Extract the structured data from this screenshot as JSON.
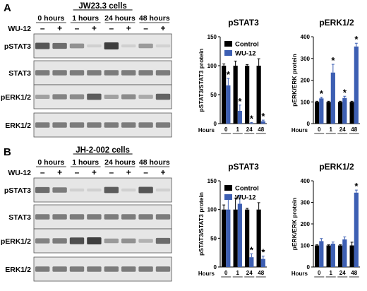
{
  "colors": {
    "control": "#000000",
    "wu12": "#3d5fb3",
    "blot_bg": "#e6e6e6",
    "band": "#3a3a3a",
    "frame": "#555555"
  },
  "panels": [
    {
      "letter": "A",
      "cell_line": "JW23.3 cells",
      "treatment_label": "WU-12",
      "time_headers": [
        "0 hours",
        "1 hours",
        "24 hours",
        "48 hours"
      ],
      "lane_signs": [
        "–",
        "+",
        "–",
        "+",
        "–",
        "+",
        "–",
        "+"
      ],
      "blot_rows": [
        {
          "label": "pSTAT3",
          "intensity": [
            0.85,
            0.7,
            0.45,
            0.05,
            1.0,
            0.05,
            0.4,
            0.03
          ]
        },
        {
          "label": "STAT3",
          "intensity": [
            0.6,
            0.6,
            0.6,
            0.6,
            0.6,
            0.6,
            0.6,
            0.6
          ]
        },
        {
          "label": "pERK1/2",
          "intensity": [
            0.35,
            0.55,
            0.5,
            0.8,
            0.35,
            0.5,
            0.3,
            0.75
          ]
        },
        {
          "label": "ERK1/2",
          "intensity": [
            0.6,
            0.6,
            0.6,
            0.6,
            0.6,
            0.6,
            0.6,
            0.6
          ]
        }
      ]
    },
    {
      "letter": "B",
      "cell_line": "JH-2-002 cells",
      "treatment_label": "WU-12",
      "time_headers": [
        "0 hours",
        "1 hours",
        "24 hours",
        "48 hours"
      ],
      "lane_signs": [
        "–",
        "+",
        "–",
        "+",
        "–",
        "+",
        "–",
        "+"
      ],
      "blot_rows": [
        {
          "label": "pSTAT3",
          "intensity": [
            0.7,
            0.6,
            0.05,
            0.05,
            0.8,
            0.05,
            0.85,
            0.05
          ]
        },
        {
          "label": "STAT3",
          "intensity": [
            0.6,
            0.6,
            0.6,
            0.6,
            0.6,
            0.6,
            0.6,
            0.6
          ]
        },
        {
          "label": "pERK1/2",
          "intensity": [
            0.55,
            0.6,
            0.9,
            1.0,
            0.4,
            0.45,
            0.25,
            0.7
          ]
        },
        {
          "label": "ERK1/2",
          "intensity": [
            0.6,
            0.6,
            0.6,
            0.6,
            0.6,
            0.6,
            0.6,
            0.6
          ]
        }
      ]
    }
  ],
  "chart_data": [
    {
      "panel": "A",
      "type": "bar",
      "title": "pSTAT3",
      "xlabel": "Hours",
      "ylabel": "pSTAT3/STAT3 protein",
      "categories": [
        "0",
        "1",
        "24",
        "48"
      ],
      "ylim": [
        0,
        150
      ],
      "yticks": [
        0,
        50,
        100,
        150
      ],
      "legend": "top-right",
      "series": [
        {
          "name": "Control",
          "values": [
            100,
            100,
            100,
            100
          ],
          "errors": [
            3,
            8,
            2,
            12
          ]
        },
        {
          "name": "WU-12",
          "values": [
            66,
            22,
            1,
            4
          ],
          "errors": [
            12,
            10,
            1,
            2
          ]
        }
      ],
      "significance": [
        false,
        true,
        false,
        true,
        false,
        true,
        false,
        true
      ]
    },
    {
      "panel": "A",
      "type": "bar",
      "title": "pERK1/2",
      "xlabel": "Hours",
      "ylabel": "pERK/ERK protein",
      "categories": [
        "0",
        "1",
        "24",
        "48"
      ],
      "ylim": [
        0,
        400
      ],
      "yticks": [
        0,
        100,
        200,
        300,
        400
      ],
      "series": [
        {
          "name": "Control",
          "values": [
            100,
            100,
            100,
            100
          ],
          "errors": [
            3,
            3,
            3,
            3
          ]
        },
        {
          "name": "WU-12",
          "values": [
            116,
            235,
            118,
            355
          ],
          "errors": [
            5,
            38,
            8,
            15
          ]
        }
      ],
      "significance": [
        false,
        true,
        false,
        true,
        false,
        true,
        false,
        true
      ]
    },
    {
      "panel": "B",
      "type": "bar",
      "title": "pSTAT3",
      "xlabel": "Hours",
      "ylabel": "pSTAT3/STAT3 protein",
      "categories": [
        "0",
        "1",
        "24",
        "48"
      ],
      "ylim": [
        0,
        150
      ],
      "yticks": [
        0,
        50,
        100,
        150
      ],
      "legend": "top-right",
      "series": [
        {
          "name": "Control",
          "values": [
            100,
            100,
            100,
            100
          ],
          "errors": [
            8,
            20,
            2,
            12
          ]
        },
        {
          "name": "WU-12",
          "values": [
            100,
            110,
            17,
            14
          ],
          "errors": [
            20,
            15,
            6,
            5
          ]
        }
      ],
      "significance": [
        false,
        false,
        false,
        false,
        false,
        true,
        false,
        true
      ]
    },
    {
      "panel": "B",
      "type": "bar",
      "title": "pERK1/2",
      "xlabel": "Hours",
      "ylabel": "pERK/ERK protein",
      "categories": [
        "0",
        "1",
        "24",
        "48"
      ],
      "ylim": [
        0,
        400
      ],
      "yticks": [
        0,
        100,
        200,
        300,
        400
      ],
      "series": [
        {
          "name": "Control",
          "values": [
            100,
            100,
            100,
            100
          ],
          "errors": [
            3,
            3,
            3,
            15
          ]
        },
        {
          "name": "WU-12",
          "values": [
            120,
            108,
            128,
            345
          ],
          "errors": [
            12,
            8,
            12,
            12
          ]
        }
      ],
      "significance": [
        false,
        false,
        false,
        false,
        false,
        false,
        false,
        true
      ]
    }
  ]
}
